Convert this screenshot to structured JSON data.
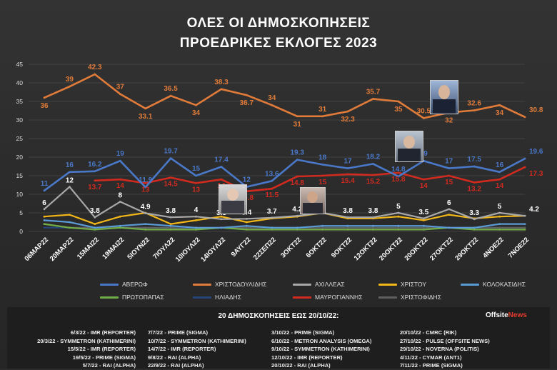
{
  "title_line1": "ΟΛΕΣ ΟΙ ΔΗΜΟΣΚΟΠΗΣΕΙΣ",
  "title_line2": "ΠΡΟΕΔΡΙΚΕΣ ΕΚΛΟΓΕΣ 2023",
  "chart_data": {
    "type": "line",
    "title": "ΟΛΕΣ ΟΙ ΔΗΜΟΣΚΟΠΗΣΕΙΣ ΠΡΟΕΔΡΙΚΕΣ ΕΚΛΟΓΕΣ 2023",
    "ylim": [
      0,
      45
    ],
    "yticks": [
      0,
      5,
      10,
      15,
      20,
      25,
      30,
      35,
      40,
      45
    ],
    "grid": true,
    "legend_position": "bottom",
    "categories": [
      "06MAP22",
      "20MAP22",
      "15MAI22",
      "19MAI22",
      "5IOYN22",
      "7IOYΛ22",
      "10IOYΛ22",
      "14IOYΛ22",
      "9AYΓ22",
      "22ΣΕΠ22",
      "3OKT22",
      "6OKT22",
      "9OKT22",
      "12OKT22",
      "20OKT22",
      "20OKT22",
      "27OKT22",
      "29OKT22",
      "4NOE22",
      "7NOE22"
    ],
    "series": [
      {
        "name": "ΑΒΕΡΩΦ",
        "color": "#4a78c8",
        "values": [
          11,
          16,
          16.2,
          19,
          11.9,
          19.7,
          15,
          17.4,
          12,
          13.6,
          19.3,
          18,
          17,
          18.2,
          14.8,
          19,
          17,
          17.5,
          16,
          19.6
        ],
        "labels": [
          "11",
          "16",
          "16.2",
          "19",
          "11.9",
          "19.7",
          "15",
          "17.4",
          "12",
          "13.6",
          "19.3",
          "18",
          "17",
          "18.2",
          "14.8",
          "19",
          "17",
          "17.5",
          "16",
          "19.6"
        ]
      },
      {
        "name": "ΧΡΙΣΤΟΔΟΥΛΙΔΗΣ",
        "color": "#e07b39",
        "values": [
          36,
          39,
          42.3,
          37,
          33.1,
          36.5,
          34,
          38.3,
          36.7,
          34,
          31,
          31,
          32.3,
          35.7,
          35,
          30.5,
          32,
          32.6,
          34,
          30.8
        ],
        "labels": [
          "36",
          "39",
          "42.3",
          "37",
          "33.1",
          "36.5",
          "34",
          "38.3",
          "36.7",
          "34",
          "31",
          "31",
          "32.3",
          "35.7",
          "35",
          "30.5",
          "32",
          "32.6",
          "34",
          "30.8"
        ]
      },
      {
        "name": "ΑΧΙΛΛΕΑΣ",
        "color": "#a8a8a8",
        "values": [
          6,
          12,
          3.8,
          8,
          4.9,
          3.8,
          4,
          3.3,
          3.4,
          3.7,
          4.2,
          5,
          3.8,
          3.8,
          5,
          3.5,
          6,
          3.3,
          5,
          4.2
        ],
        "labels": [
          "6",
          "12",
          "3.8",
          "8",
          "4.9",
          "3.8",
          "4",
          "3.3",
          "3.4",
          "3.7",
          "4.2",
          "5",
          "3.8",
          "3.8",
          "5",
          "3.5",
          "6",
          "3.3",
          "5",
          "4.2"
        ]
      },
      {
        "name": "ΧΡΙΣΤΟΥ",
        "color": "#f1b617",
        "values": [
          4,
          4.5,
          2,
          4,
          5,
          2,
          3,
          4,
          2.5,
          3.5,
          4,
          5,
          3.5,
          3.5,
          4,
          3,
          4.5,
          3.5,
          4,
          4.2
        ],
        "labels": []
      },
      {
        "name": "ΚΟΛΟΚΑΣΙΔΗΣ",
        "color": "#5b9bd5",
        "values": [
          3,
          2.5,
          1,
          1.5,
          2,
          1.5,
          1,
          1,
          1.5,
          1,
          1,
          1.5,
          1.5,
          1.5,
          1.5,
          1.5,
          1,
          1,
          2,
          2
        ],
        "labels": []
      },
      {
        "name": "ΠΡΩΤΟΠΑΠΑΣ",
        "color": "#70ad47",
        "values": [
          2,
          1,
          0.5,
          1,
          0.5,
          0.5,
          0.5,
          1,
          0.5,
          0.5,
          0.5,
          0.5,
          0.5,
          0.5,
          0.5,
          0.5,
          1,
          0.5,
          0.5,
          0.5
        ],
        "labels": []
      },
      {
        "name": "ΗΛΙΑΔΗΣ",
        "color": "#264478",
        "values": [
          1,
          1,
          1,
          1,
          1,
          1,
          1,
          1,
          1,
          1,
          1,
          1,
          1,
          1,
          1,
          1,
          1,
          1,
          1,
          1
        ],
        "labels": []
      },
      {
        "name": "ΜΑΥΡΟΓΙΑΝΝΗΣ",
        "color": "#d12a1f",
        "values": [
          null,
          null,
          13.7,
          14,
          13,
          14.5,
          13,
          14,
          10.8,
          11.5,
          14.8,
          15,
          15.4,
          15.2,
          15.8,
          14,
          15,
          13.2,
          14,
          17.3
        ],
        "labels": [
          "",
          "",
          "13.7",
          "14",
          "13",
          "14.5",
          "13",
          "14",
          "10.8",
          "11.5",
          "14.8",
          "15",
          "15.4",
          "15.2",
          "15.8",
          "14",
          "15",
          "13.2",
          "14",
          "17.3"
        ]
      },
      {
        "name": "ΧΡΙΣΤΟΦΙΔΗΣ",
        "color": "#5f5f5f",
        "values": [
          2,
          1,
          1,
          1,
          1,
          1,
          0.5,
          1,
          1,
          1,
          1,
          1,
          1,
          1,
          1,
          1,
          1,
          1,
          1,
          1
        ],
        "labels": []
      }
    ]
  },
  "polls_title": "20  ΔΗΜΟΣΚΟΠΗΣΕΙΣ ΕΩΣ 20/10/22:",
  "brand": {
    "main": "Offsite",
    "accent": "News"
  },
  "poll_columns": [
    [
      "6/3/22 - IMR (REPORTER)",
      "20/3/22 - SYMMETRON (KATHIMERINI)",
      "15/5/22 - IMR (REPORTER)",
      "19/5/22 - PRIME (SIGMA)",
      "5/7/22 - RAI (ALPHA)"
    ],
    [
      "7/7/22 - PRIME (SIGMA)",
      "10/7/22 - SYMMETRON (KATHIMERINI)",
      "14/7/22 - IMR (REPORTER)",
      "9/8/22 - RAI (ALPHA)",
      "22/9/22 - RAI (ALPHA)"
    ],
    [
      "3/10/22 - PRIME (SIGMA)",
      "6/10/22 - METRON ANALYSIS (OMEGA)",
      "9/10/22 - SYMMETRON (KATHIMERINI)",
      "12/10/22 - IMR (REPORTER)",
      "20/10/22 - RAI (ALPHA)"
    ],
    [
      "20/10/22 - CMRC (RIK)",
      "27/10/22 - PULSE (OFFSITE NEWS)",
      "29/10/22 - NOVERNA (POLITIS)",
      "4/11/22 - CYMAR (ANT1)",
      "7/11/22 - PRIME (SIGMA)"
    ]
  ]
}
